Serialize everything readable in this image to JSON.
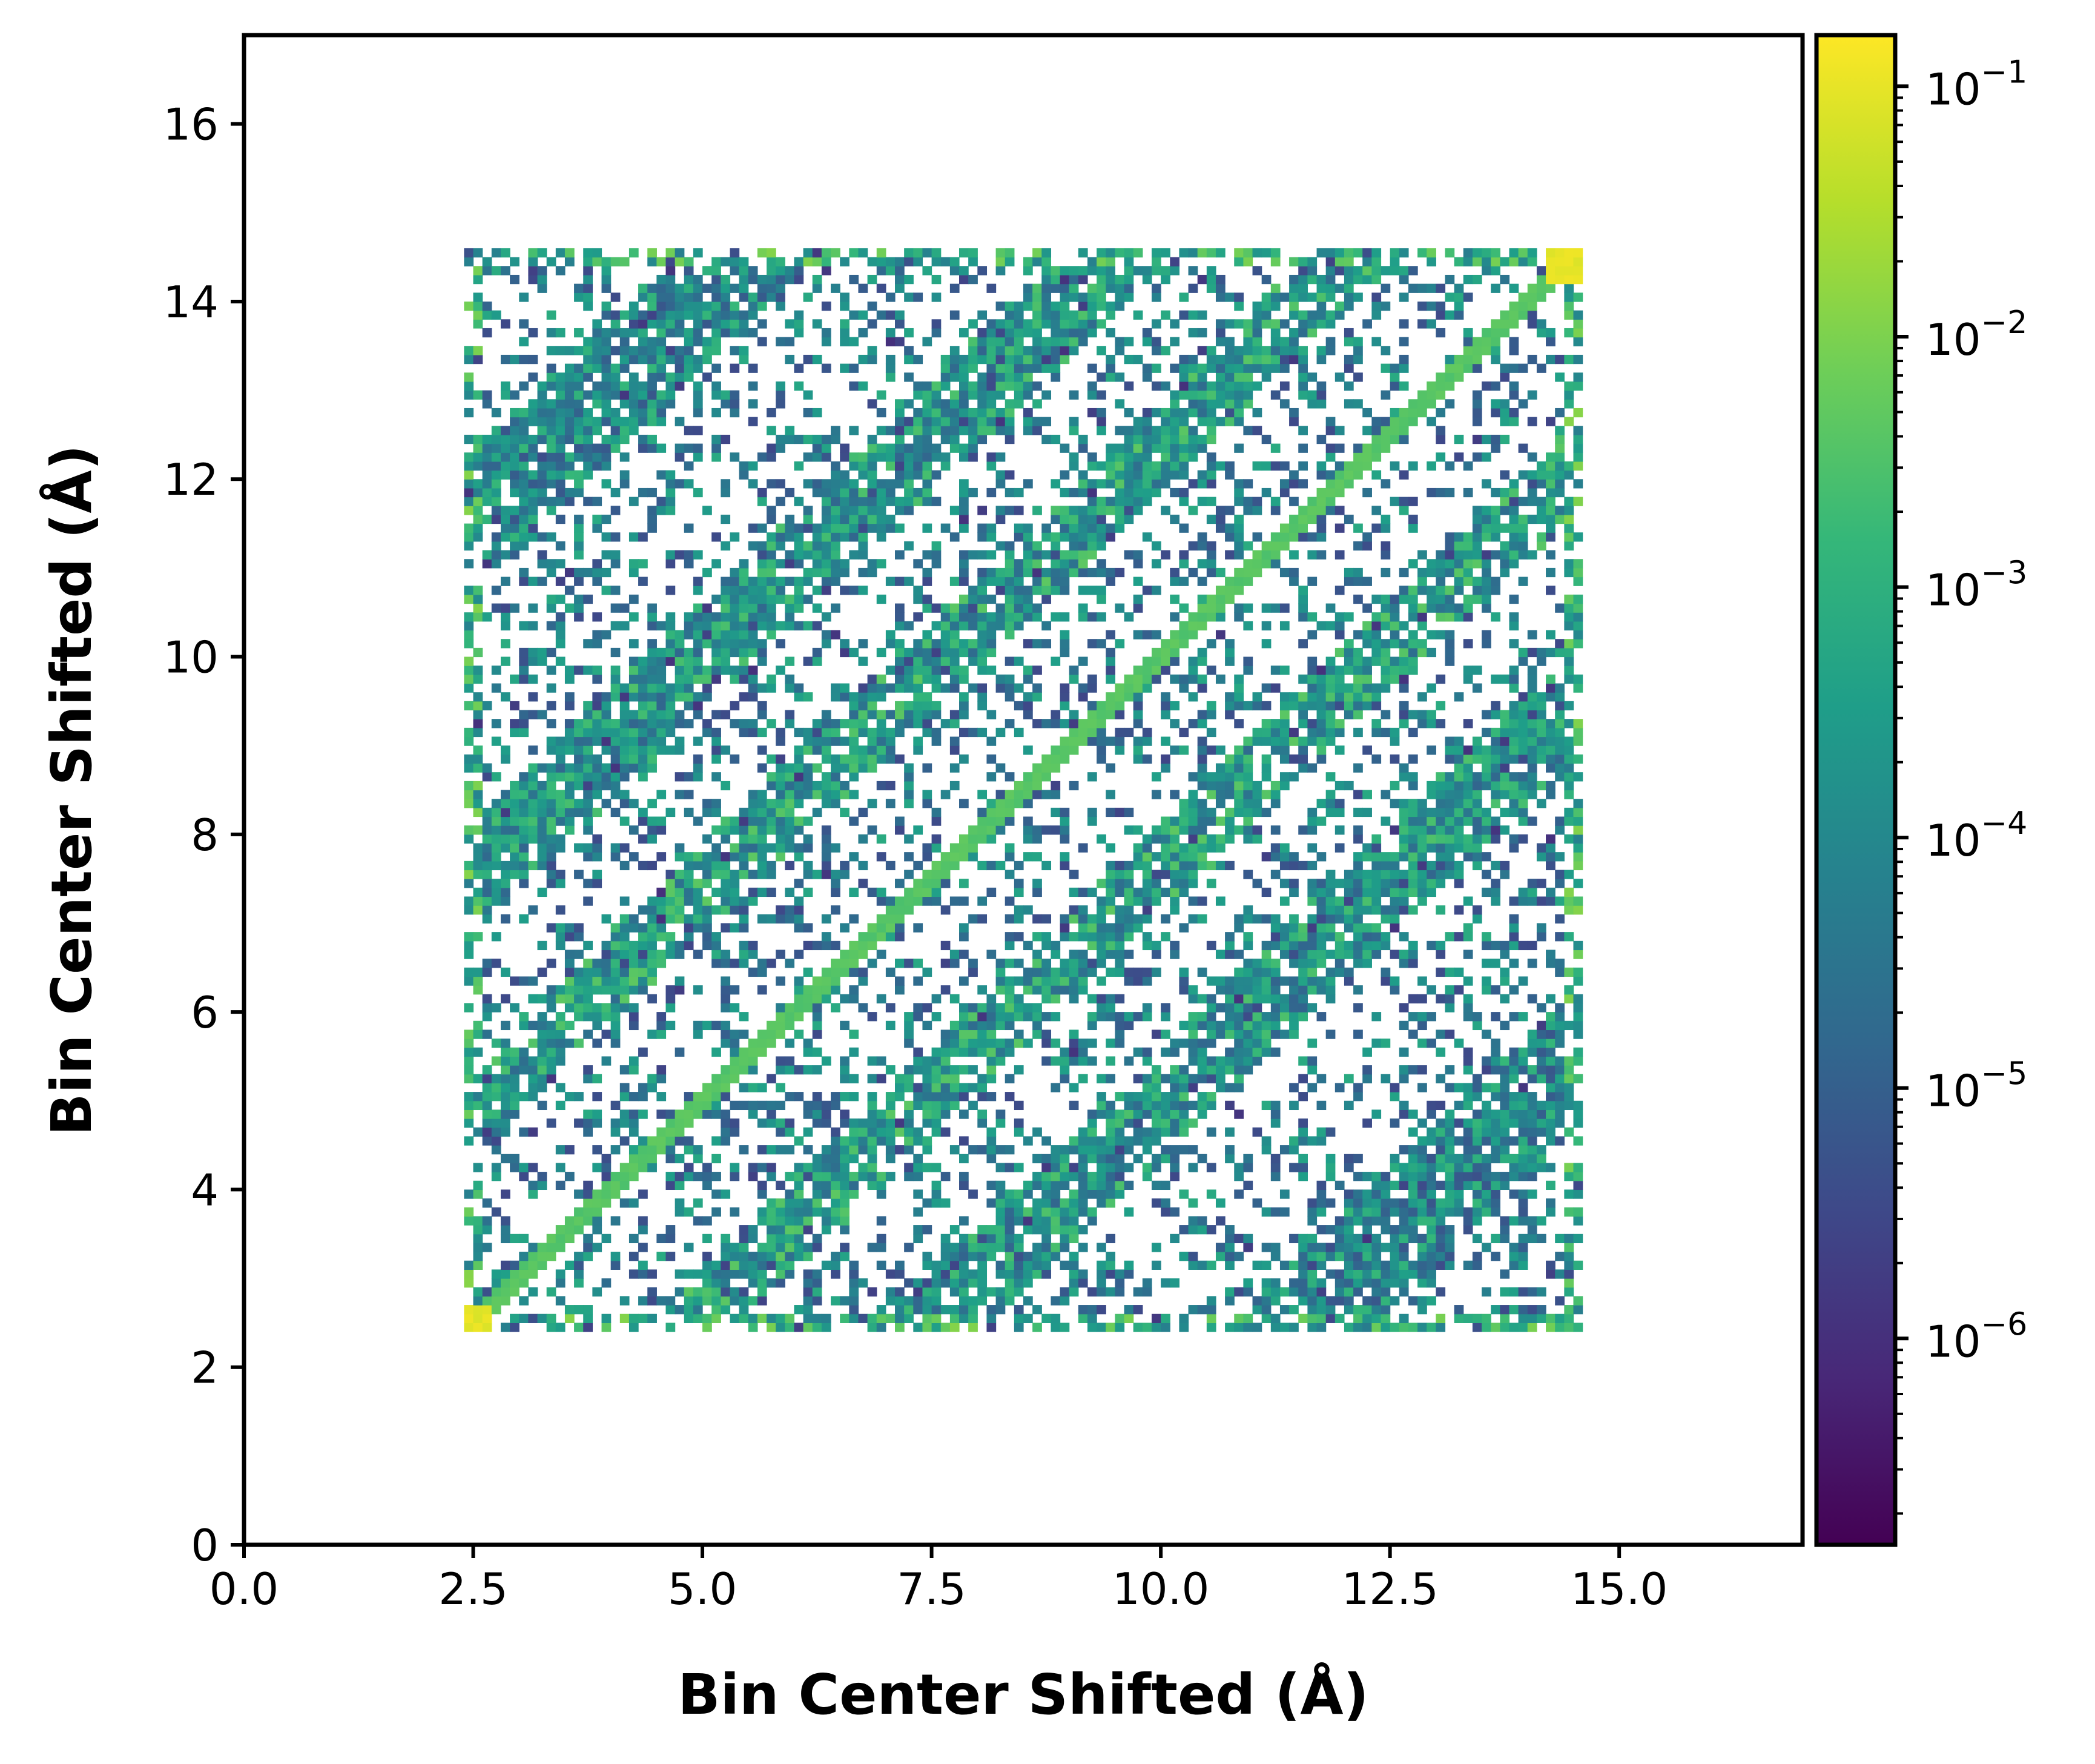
{
  "chart_data": {
    "type": "heatmap",
    "title": "",
    "xlabel": "Bin Center Shifted (Å)",
    "ylabel": "Bin Center Shifted (Å)",
    "xlim": [
      0,
      17
    ],
    "ylim": [
      0,
      17
    ],
    "x_ticks": [
      {
        "value": 0.0,
        "label": "0.0"
      },
      {
        "value": 2.5,
        "label": "2.5"
      },
      {
        "value": 5.0,
        "label": "5.0"
      },
      {
        "value": 7.5,
        "label": "7.5"
      },
      {
        "value": 10.0,
        "label": "10.0"
      },
      {
        "value": 12.5,
        "label": "12.5"
      },
      {
        "value": 15.0,
        "label": "15.0"
      }
    ],
    "y_ticks": [
      {
        "value": 0,
        "label": "0"
      },
      {
        "value": 2,
        "label": "2"
      },
      {
        "value": 4,
        "label": "4"
      },
      {
        "value": 6,
        "label": "6"
      },
      {
        "value": 8,
        "label": "8"
      },
      {
        "value": 10,
        "label": "10"
      },
      {
        "value": 12,
        "label": "12"
      },
      {
        "value": 14,
        "label": "14"
      },
      {
        "value": 16,
        "label": "16"
      }
    ],
    "data_extent": {
      "x": [
        2.4,
        14.6
      ],
      "y": [
        2.4,
        14.6
      ]
    },
    "grid": false,
    "colorbar": {
      "scale": "log",
      "colormap": "viridis",
      "range": [
        1.5e-07,
        0.16
      ],
      "ticks": [
        {
          "value": 1e-06,
          "base": "10",
          "exp": "−6"
        },
        {
          "value": 1e-05,
          "base": "10",
          "exp": "−5"
        },
        {
          "value": 0.0001,
          "base": "10",
          "exp": "−4"
        },
        {
          "value": 0.001,
          "base": "10",
          "exp": "−3"
        },
        {
          "value": 0.01,
          "base": "10",
          "exp": "−2"
        },
        {
          "value": 0.1,
          "base": "10",
          "exp": "−1"
        }
      ],
      "colors": [
        "#440154",
        "#482878",
        "#3e4989",
        "#31688e",
        "#26828e",
        "#1f9e89",
        "#35b779",
        "#6ece58",
        "#b5de2b",
        "#fde725"
      ]
    },
    "features": {
      "diagonal_value": 0.004,
      "corner_peak_value": 0.12,
      "bands": [
        {
          "offset": 0,
          "width": 0.15,
          "value": 0.004
        },
        {
          "offset": 2.4,
          "width": 0.5,
          "value": 0.0003
        },
        {
          "offset": -2.4,
          "width": 0.5,
          "value": 0.0003
        },
        {
          "offset": 5.0,
          "width": 0.6,
          "value": 0.0002
        },
        {
          "offset": -5.0,
          "width": 0.6,
          "value": 0.0002
        },
        {
          "offset": 9.0,
          "width": 0.8,
          "value": 0.0001
        },
        {
          "offset": -9.0,
          "width": 0.8,
          "value": 0.0001
        }
      ]
    }
  }
}
